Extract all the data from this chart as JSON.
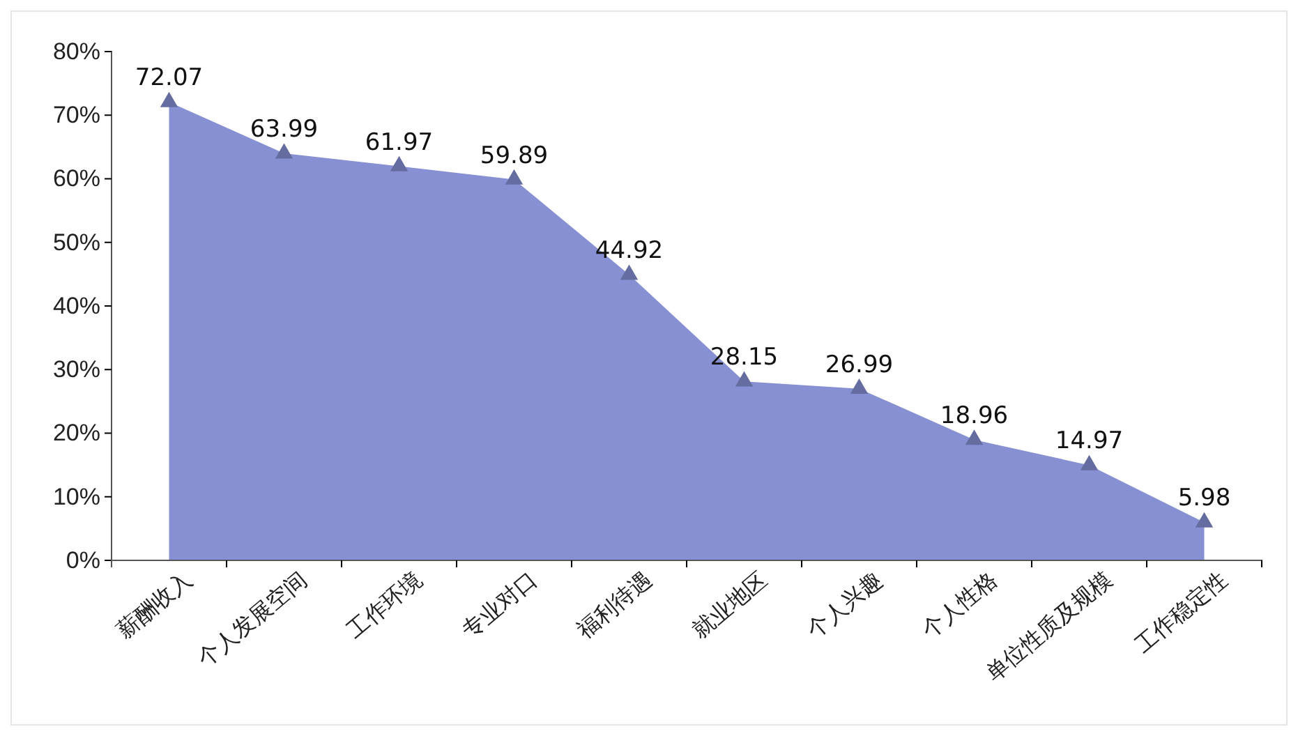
{
  "chart_data": {
    "type": "area",
    "categories": [
      "薪酬收入",
      "个人发展空间",
      "工作环境",
      "专业对口",
      "福利待遇",
      "就业地区",
      "个人兴趣",
      "个人性格",
      "单位性质及规模",
      "工作稳定性"
    ],
    "values": [
      72.07,
      63.99,
      61.97,
      59.89,
      44.92,
      28.15,
      26.99,
      18.96,
      14.97,
      5.98
    ],
    "color": "#8690d3",
    "ylim": [
      0,
      80
    ],
    "yticks": [
      {
        "value": 0,
        "label": "0%"
      },
      {
        "value": 10,
        "label": "10%"
      },
      {
        "value": 20,
        "label": "20%"
      },
      {
        "value": 30,
        "label": "30%"
      },
      {
        "value": 40,
        "label": "40%"
      },
      {
        "value": 50,
        "label": "50%"
      },
      {
        "value": 60,
        "label": "60%"
      },
      {
        "value": 70,
        "label": "70%"
      },
      {
        "value": 80,
        "label": "80%"
      }
    ],
    "marker": "triangle",
    "data_labels": true
  }
}
